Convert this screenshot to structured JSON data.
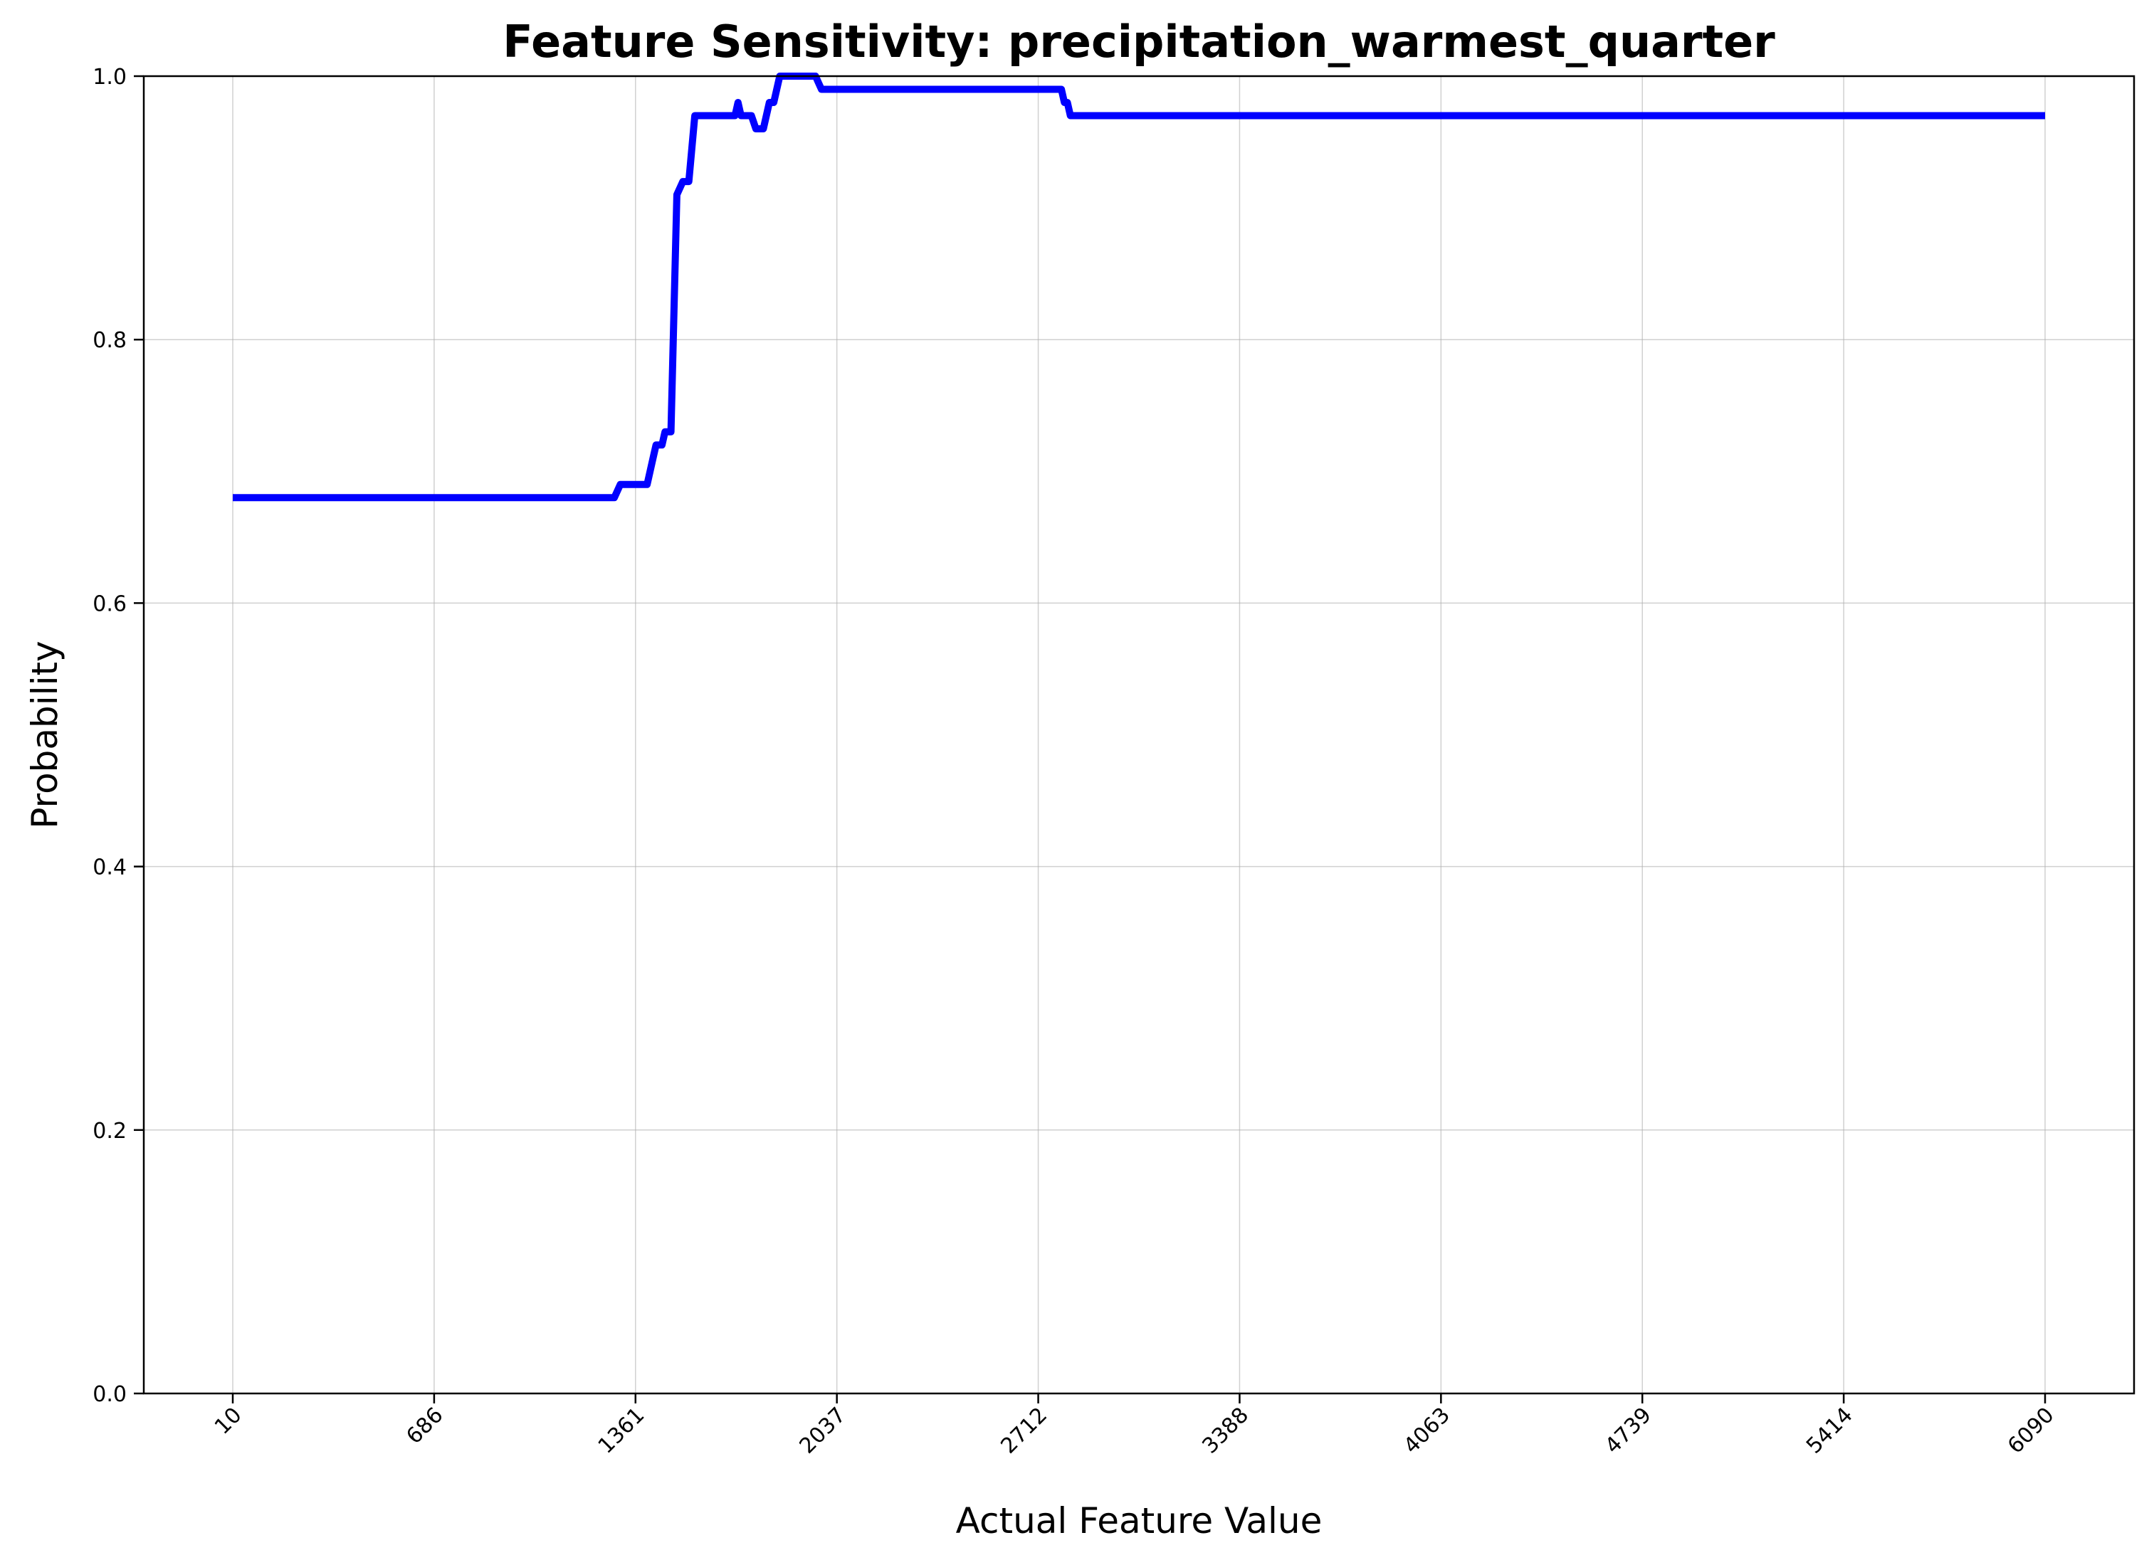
{
  "chart_data": {
    "type": "line",
    "title": "Feature Sensitivity: precipitation_warmest_quarter",
    "xlabel": "Actual Feature Value",
    "ylabel": "Probability",
    "xlim": [
      10,
      6090
    ],
    "ylim": [
      0.0,
      1.0
    ],
    "x_ticks": [
      "10",
      "686",
      "1361",
      "2037",
      "2712",
      "3388",
      "4063",
      "4739",
      "5414",
      "6090"
    ],
    "y_ticks": [
      "0.0",
      "0.2",
      "0.4",
      "0.6",
      "0.8",
      "1.0"
    ],
    "grid": true,
    "line_color": "#0000ff",
    "series": [
      {
        "x": [
          10,
          1290,
          1310,
          1400,
          1420,
          1430,
          1450,
          1460,
          1480,
          1500,
          1520,
          1540,
          1560,
          1600,
          1695,
          1705,
          1715,
          1750,
          1765,
          1790,
          1810,
          1825,
          1845,
          1860,
          1965,
          1985,
          2790,
          2800,
          2810,
          2820,
          2830,
          6090
        ],
        "y": [
          0.68,
          0.68,
          0.69,
          0.69,
          0.71,
          0.72,
          0.72,
          0.73,
          0.73,
          0.91,
          0.92,
          0.92,
          0.97,
          0.97,
          0.97,
          0.98,
          0.97,
          0.97,
          0.96,
          0.96,
          0.98,
          0.98,
          1.0,
          1.0,
          1.0,
          0.99,
          0.99,
          0.98,
          0.98,
          0.97,
          0.97,
          0.97
        ]
      }
    ]
  }
}
